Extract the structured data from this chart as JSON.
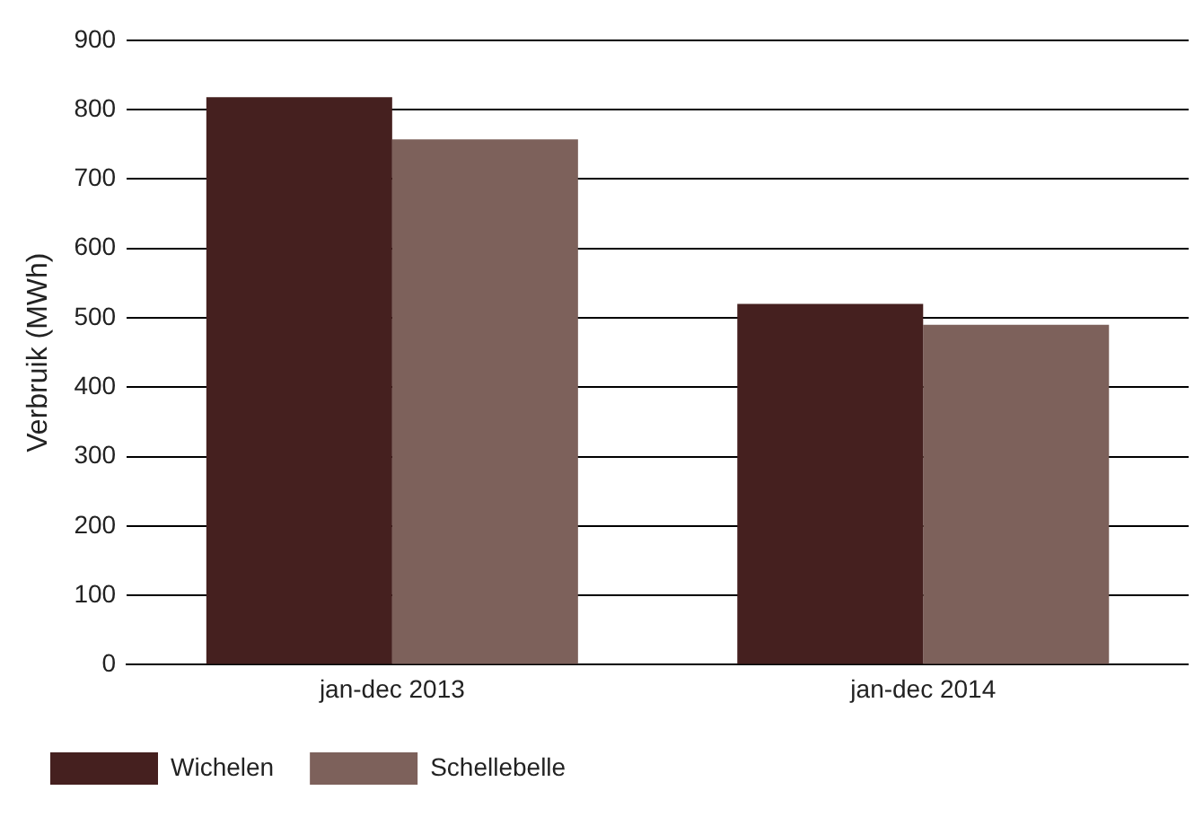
{
  "chart_data": {
    "type": "bar",
    "ylabel": "Verbruik (MWh)",
    "categories": [
      "jan-dec 2013",
      "jan-dec 2014"
    ],
    "series": [
      {
        "name": "Wichelen",
        "color": "#45201f",
        "values": [
          818,
          520
        ]
      },
      {
        "name": "Schellebelle",
        "color": "#7d615b",
        "values": [
          757,
          490
        ]
      }
    ],
    "ylim": [
      0,
      900
    ],
    "yticks": [
      0,
      100,
      200,
      300,
      400,
      500,
      600,
      700,
      800,
      900
    ],
    "grid": "y",
    "legend": "bottom"
  }
}
